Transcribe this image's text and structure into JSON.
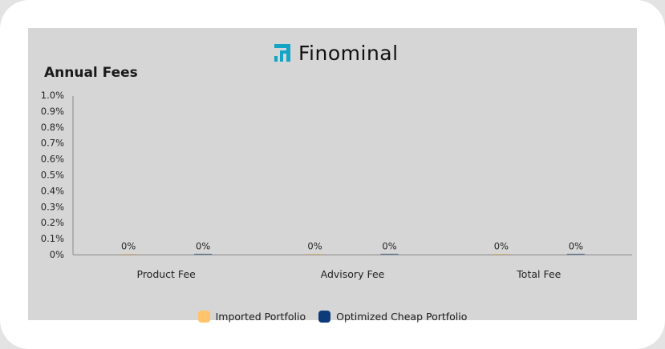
{
  "brand": {
    "name": "Finominal",
    "icon": "finominal-logo-icon",
    "accent": "#12a3c4"
  },
  "chart_data": {
    "type": "bar",
    "title": "Annual Fees",
    "categories": [
      "Product Fee",
      "Advisory Fee",
      "Total Fee"
    ],
    "series": [
      {
        "name": "Imported Portfolio",
        "color": "#ffc46b",
        "values": [
          0,
          0,
          0
        ],
        "labels": [
          "0%",
          "0%",
          "0%"
        ]
      },
      {
        "name": "Optimized Cheap Portfolio",
        "color": "#0d3a7a",
        "values": [
          0,
          0,
          0
        ],
        "labels": [
          "0%",
          "0%",
          "0%"
        ]
      }
    ],
    "ylim": [
      0,
      1.0
    ],
    "yticks": [
      "1.0%",
      "0.9%",
      "0.8%",
      "0.7%",
      "0.6%",
      "0.5%",
      "0.4%",
      "0.3%",
      "0.2%",
      "0.1%",
      "0%"
    ],
    "ytick_values": [
      1.0,
      0.9,
      0.8,
      0.7,
      0.6,
      0.5,
      0.4,
      0.3,
      0.2,
      0.1,
      0
    ],
    "grid": false,
    "legend": "bottom-center"
  }
}
